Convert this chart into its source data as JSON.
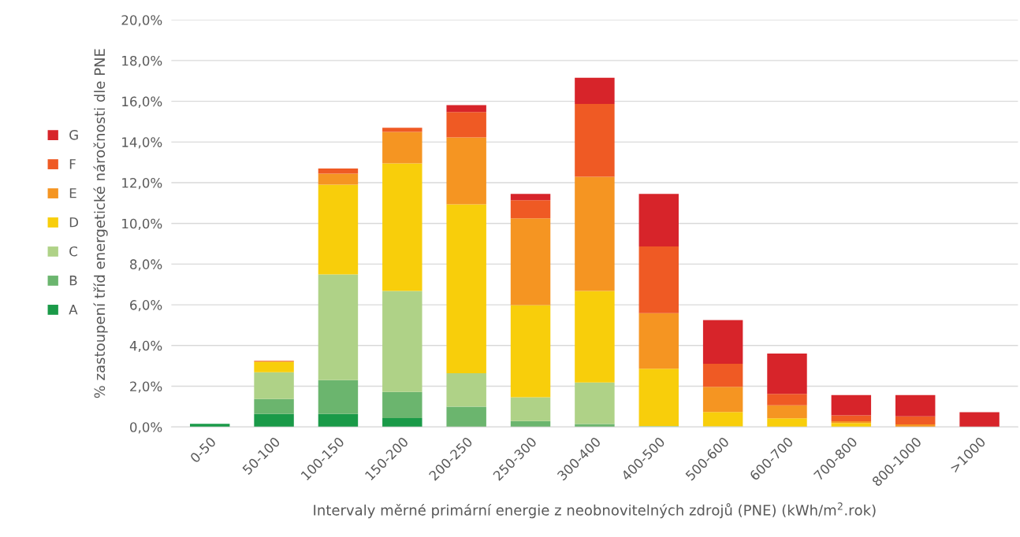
{
  "chart_data": {
    "type": "bar",
    "stacked": true,
    "xlabel": "Intervaly měrné primární energie z neobnovitelných zdrojů (PNE) (kWh/m$^{2}$.rok)",
    "ylabel": "% zastoupení tříd energetické náročnosti dle PNE",
    "categories": [
      "0-50",
      "50-100",
      "100-150",
      "150-200",
      "200-250",
      "250-300",
      "300-400",
      "400-500",
      "500-600",
      "600-700",
      "700-800",
      "800-1000",
      ">1000"
    ],
    "series": [
      {
        "name": "A",
        "color": "#1a9a48",
        "values": [
          0.15,
          0.64,
          0.64,
          0.43,
          0,
          0,
          0,
          0,
          0,
          0,
          0,
          0,
          0
        ]
      },
      {
        "name": "B",
        "color": "#6bb56e",
        "values": [
          0,
          0.73,
          1.66,
          1.29,
          0.99,
          0.29,
          0.14,
          0,
          0,
          0,
          0,
          0,
          0
        ]
      },
      {
        "name": "C",
        "color": "#afd287",
        "values": [
          0,
          1.32,
          5.19,
          4.96,
          1.65,
          1.17,
          2.04,
          0.05,
          0.03,
          0,
          0,
          0,
          0
        ]
      },
      {
        "name": "D",
        "color": "#f8ce0b",
        "values": [
          0,
          0.52,
          4.41,
          6.27,
          8.3,
          4.52,
          4.5,
          2.81,
          0.7,
          0.42,
          0.19,
          0,
          0
        ]
      },
      {
        "name": "E",
        "color": "#f59522",
        "values": [
          0,
          0,
          0.55,
          1.55,
          3.29,
          4.27,
          5.61,
          2.73,
          1.24,
          0.64,
          0.09,
          0.12,
          0
        ]
      },
      {
        "name": "F",
        "color": "#ef5a24",
        "values": [
          0,
          0.04,
          0.25,
          0.2,
          1.24,
          0.89,
          3.58,
          3.28,
          1.13,
          0.56,
          0.29,
          0.4,
          0
        ]
      },
      {
        "name": "G",
        "color": "#d7242a",
        "values": [
          0,
          0,
          0,
          0,
          0.34,
          0.31,
          1.29,
          2.58,
          2.15,
          1.99,
          0.99,
          1.04,
          0.72
        ]
      }
    ],
    "ylim": [
      0,
      20
    ],
    "yticks": [
      {
        "value": 0,
        "label": "0,0%"
      },
      {
        "value": 2,
        "label": "2,0%"
      },
      {
        "value": 4,
        "label": "4,0%"
      },
      {
        "value": 6,
        "label": "6,0%"
      },
      {
        "value": 8,
        "label": "8,0%"
      },
      {
        "value": 10,
        "label": "10,0%"
      },
      {
        "value": 12,
        "label": "12,0%"
      },
      {
        "value": 14,
        "label": "14,0%"
      },
      {
        "value": 16,
        "label": "16,0%"
      },
      {
        "value": 18,
        "label": "18,0%"
      },
      {
        "value": 20,
        "label": "20,0%"
      }
    ],
    "grid": "y",
    "legend": "left"
  }
}
